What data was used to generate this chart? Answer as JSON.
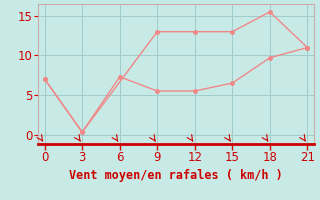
{
  "line1_x": [
    0,
    3,
    9,
    12,
    15,
    18,
    21
  ],
  "line1_y": [
    7,
    0.3,
    13,
    13,
    13,
    15.5,
    11
  ],
  "line2_x": [
    0,
    3,
    6,
    9,
    12,
    15,
    18,
    21
  ],
  "line2_y": [
    7,
    0.3,
    7.3,
    5.5,
    5.5,
    6.5,
    9.7,
    11
  ],
  "line_color": "#f08888",
  "marker_color": "#f08888",
  "bg_color": "#c8eae6",
  "grid_color": "#a0cccc",
  "spine_color": "#ccaaaa",
  "bottom_spine_color": "#cc0000",
  "xlabel": "Vent moyen/en rafales ( km/h )",
  "xlabel_color": "#cc0000",
  "tick_color": "#cc0000",
  "xlim": [
    -0.5,
    21.5
  ],
  "ylim": [
    -1.2,
    16.5
  ],
  "xticks": [
    0,
    3,
    6,
    9,
    12,
    15,
    18,
    21
  ],
  "yticks": [
    0,
    5,
    10,
    15
  ],
  "xlabel_fontsize": 8.5,
  "tick_fontsize": 8.5,
  "linewidth": 1.0,
  "markersize": 3.0
}
